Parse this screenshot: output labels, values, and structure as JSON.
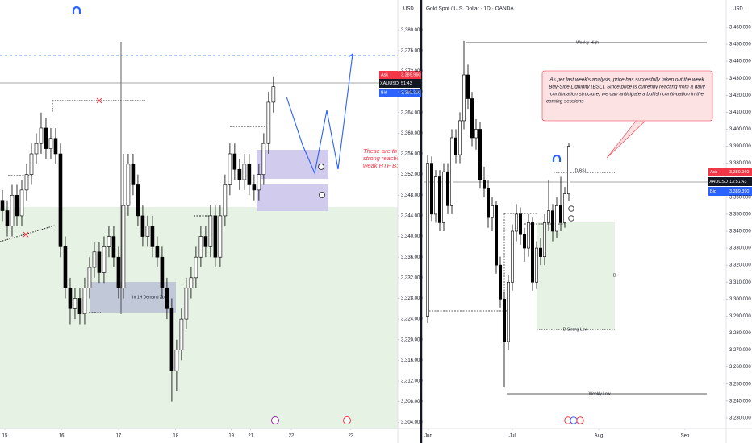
{
  "chart_data": [
    {
      "type": "candlestick",
      "unit": "USD",
      "up_color": "#ffffff",
      "down_color": "#000000",
      "edge_color": "#000000",
      "candles": [
        {
          "o": 3347,
          "h": 3349,
          "l": 3343,
          "c": 3345
        },
        {
          "o": 3345,
          "h": 3347,
          "l": 3340,
          "c": 3342
        },
        {
          "o": 3342,
          "h": 3350,
          "l": 3340,
          "c": 3348
        },
        {
          "o": 3348,
          "h": 3350,
          "l": 3342,
          "c": 3344
        },
        {
          "o": 3344,
          "h": 3351,
          "l": 3342,
          "c": 3349
        },
        {
          "o": 3349,
          "h": 3354,
          "l": 3347,
          "c": 3352
        },
        {
          "o": 3352,
          "h": 3358,
          "l": 3350,
          "c": 3356
        },
        {
          "o": 3356,
          "h": 3360,
          "l": 3354,
          "c": 3358
        },
        {
          "o": 3358,
          "h": 3364,
          "l": 3356,
          "c": 3361
        },
        {
          "o": 3361,
          "h": 3363,
          "l": 3355,
          "c": 3357
        },
        {
          "o": 3357,
          "h": 3361,
          "l": 3355,
          "c": 3359
        },
        {
          "o": 3359,
          "h": 3361,
          "l": 3354,
          "c": 3356
        },
        {
          "o": 3356,
          "h": 3358,
          "l": 3336,
          "c": 3338
        },
        {
          "o": 3338,
          "h": 3340,
          "l": 3328,
          "c": 3330
        },
        {
          "o": 3330,
          "h": 3332,
          "l": 3323,
          "c": 3326
        },
        {
          "o": 3326,
          "h": 3330,
          "l": 3324,
          "c": 3328
        },
        {
          "o": 3328,
          "h": 3330,
          "l": 3323,
          "c": 3325
        },
        {
          "o": 3325,
          "h": 3332,
          "l": 3323,
          "c": 3330
        },
        {
          "o": 3330,
          "h": 3336,
          "l": 3328,
          "c": 3334
        },
        {
          "o": 3334,
          "h": 3339,
          "l": 3332,
          "c": 3337
        },
        {
          "o": 3337,
          "h": 3339,
          "l": 3331,
          "c": 3333
        },
        {
          "o": 3333,
          "h": 3340,
          "l": 3331,
          "c": 3338
        },
        {
          "o": 3338,
          "h": 3342,
          "l": 3336,
          "c": 3340
        },
        {
          "o": 3340,
          "h": 3342,
          "l": 3334,
          "c": 3336
        },
        {
          "o": 3336,
          "h": 3338,
          "l": 3328,
          "c": 3330
        },
        {
          "o": 3330,
          "h": 3356,
          "l": 3328,
          "c": 3346
        },
        {
          "o": 3346,
          "h": 3356,
          "l": 3344,
          "c": 3354
        },
        {
          "o": 3354,
          "h": 3356,
          "l": 3348,
          "c": 3350
        },
        {
          "o": 3350,
          "h": 3352,
          "l": 3342,
          "c": 3344
        },
        {
          "o": 3344,
          "h": 3346,
          "l": 3338,
          "c": 3340
        },
        {
          "o": 3340,
          "h": 3344,
          "l": 3338,
          "c": 3342
        },
        {
          "o": 3342,
          "h": 3344,
          "l": 3336,
          "c": 3338
        },
        {
          "o": 3338,
          "h": 3340,
          "l": 3334,
          "c": 3336
        },
        {
          "o": 3336,
          "h": 3338,
          "l": 3328,
          "c": 3330
        },
        {
          "o": 3330,
          "h": 3332,
          "l": 3324,
          "c": 3326
        },
        {
          "o": 3326,
          "h": 3328,
          "l": 3308,
          "c": 3314
        },
        {
          "o": 3314,
          "h": 3320,
          "l": 3310,
          "c": 3318
        },
        {
          "o": 3318,
          "h": 3326,
          "l": 3316,
          "c": 3324
        },
        {
          "o": 3324,
          "h": 3332,
          "l": 3322,
          "c": 3330
        },
        {
          "o": 3330,
          "h": 3334,
          "l": 3328,
          "c": 3332
        },
        {
          "o": 3332,
          "h": 3338,
          "l": 3330,
          "c": 3336
        },
        {
          "o": 3336,
          "h": 3342,
          "l": 3334,
          "c": 3340
        },
        {
          "o": 3340,
          "h": 3342,
          "l": 3336,
          "c": 3338
        },
        {
          "o": 3338,
          "h": 3346,
          "l": 3336,
          "c": 3344
        },
        {
          "o": 3344,
          "h": 3346,
          "l": 3334,
          "c": 3336
        },
        {
          "o": 3336,
          "h": 3346,
          "l": 3334,
          "c": 3344
        },
        {
          "o": 3344,
          "h": 3352,
          "l": 3342,
          "c": 3350
        },
        {
          "o": 3350,
          "h": 3358,
          "l": 3348,
          "c": 3356
        },
        {
          "o": 3356,
          "h": 3358,
          "l": 3351,
          "c": 3353
        },
        {
          "o": 3353,
          "h": 3355,
          "l": 3349,
          "c": 3351
        },
        {
          "o": 3351,
          "h": 3356,
          "l": 3349,
          "c": 3354
        },
        {
          "o": 3354,
          "h": 3356,
          "l": 3348,
          "c": 3350
        },
        {
          "o": 3350,
          "h": 3352,
          "l": 3347,
          "c": 3349
        },
        {
          "o": 3349,
          "h": 3354,
          "l": 3347,
          "c": 3352
        },
        {
          "o": 3352,
          "h": 3360,
          "l": 3350,
          "c": 3358
        },
        {
          "o": 3358,
          "h": 3368,
          "l": 3356,
          "c": 3366
        },
        {
          "o": 3366,
          "h": 3371,
          "l": 3364,
          "c": 3369
        }
      ],
      "xlim": [
        -0.5,
        81.7
      ],
      "xticks": [
        {
          "value": 0.5,
          "label": "15"
        },
        {
          "value": 12.2,
          "label": "16"
        },
        {
          "value": 24,
          "label": "17"
        },
        {
          "value": 35.8,
          "label": "18"
        },
        {
          "value": 47.3,
          "label": "19"
        },
        {
          "value": 51.3,
          "label": "21"
        },
        {
          "value": 59.7,
          "label": "22"
        },
        {
          "value": 72,
          "label": "23"
        }
      ],
      "ylim": [
        3302.8,
        3385.8
      ],
      "yticks": [
        {
          "value": 3304,
          "label": "3,304.000"
        },
        {
          "value": 3308,
          "label": "3,308.000"
        },
        {
          "value": 3312,
          "label": "3,312.000"
        },
        {
          "value": 3316,
          "label": "3,316.000"
        },
        {
          "value": 3320,
          "label": "3,320.000"
        },
        {
          "value": 3324,
          "label": "3,324.000"
        },
        {
          "value": 3328,
          "label": "3,328.000"
        },
        {
          "value": 3332,
          "label": "3,332.000"
        },
        {
          "value": 3336,
          "label": "3,336.000"
        },
        {
          "value": 3340,
          "label": "3,340.000"
        },
        {
          "value": 3344,
          "label": "3,344.000"
        },
        {
          "value": 3348,
          "label": "3,348.000"
        },
        {
          "value": 3352,
          "label": "3,352.000"
        },
        {
          "value": 3356,
          "label": "3,356.000"
        },
        {
          "value": 3360,
          "label": "3,360.000"
        },
        {
          "value": 3364,
          "label": "3,364.000"
        },
        {
          "value": 3368,
          "label": "3,368.000"
        },
        {
          "value": 3372,
          "label": "3,372.000"
        },
        {
          "value": 3376,
          "label": "3,376.000"
        },
        {
          "value": 3380,
          "label": "3,380.000"
        }
      ],
      "price_tags": {
        "ask": {
          "name": "Ask",
          "value": 3389.96,
          "label": "3,389.960"
        },
        "symbol": {
          "name": "XAUUSD",
          "time": "51:43"
        },
        "bid": {
          "name": "Bid",
          "value": 3389.39,
          "label": "3,389.390"
        }
      },
      "annotations": {
        "note": [
          "These are the F",
          "strong reaction",
          "weak HTF BSL."
        ],
        "zone": "thr 1H Demand Zone"
      }
    },
    {
      "type": "candlestick",
      "title": "Gold Spot / U.S. Dollar · 1D · OANDA",
      "unit": "USD",
      "up_color": "#ffffff",
      "down_color": "#000000",
      "edge_color": "#000000",
      "candles": [
        {
          "o": 3290,
          "h": 3385,
          "l": 3286,
          "c": 3380
        },
        {
          "o": 3380,
          "h": 3384,
          "l": 3346,
          "c": 3350
        },
        {
          "o": 3350,
          "h": 3376,
          "l": 3345,
          "c": 3372
        },
        {
          "o": 3372,
          "h": 3376,
          "l": 3340,
          "c": 3345
        },
        {
          "o": 3345,
          "h": 3380,
          "l": 3340,
          "c": 3375
        },
        {
          "o": 3375,
          "h": 3380,
          "l": 3350,
          "c": 3355
        },
        {
          "o": 3355,
          "h": 3400,
          "l": 3350,
          "c": 3395
        },
        {
          "o": 3395,
          "h": 3400,
          "l": 3380,
          "c": 3385
        },
        {
          "o": 3385,
          "h": 3410,
          "l": 3380,
          "c": 3405
        },
        {
          "o": 3405,
          "h": 3452,
          "l": 3400,
          "c": 3432
        },
        {
          "o": 3432,
          "h": 3438,
          "l": 3412,
          "c": 3418
        },
        {
          "o": 3418,
          "h": 3422,
          "l": 3390,
          "c": 3395
        },
        {
          "o": 3395,
          "h": 3406,
          "l": 3388,
          "c": 3400
        },
        {
          "o": 3400,
          "h": 3404,
          "l": 3365,
          "c": 3370
        },
        {
          "o": 3370,
          "h": 3378,
          "l": 3360,
          "c": 3365
        },
        {
          "o": 3365,
          "h": 3370,
          "l": 3342,
          "c": 3348
        },
        {
          "o": 3348,
          "h": 3360,
          "l": 3340,
          "c": 3355
        },
        {
          "o": 3355,
          "h": 3358,
          "l": 3315,
          "c": 3320
        },
        {
          "o": 3320,
          "h": 3325,
          "l": 3295,
          "c": 3300
        },
        {
          "o": 3300,
          "h": 3304,
          "l": 3248,
          "c": 3275
        },
        {
          "o": 3275,
          "h": 3314,
          "l": 3270,
          "c": 3310
        },
        {
          "o": 3310,
          "h": 3344,
          "l": 3305,
          "c": 3340
        },
        {
          "o": 3340,
          "h": 3356,
          "l": 3334,
          "c": 3350
        },
        {
          "o": 3350,
          "h": 3354,
          "l": 3332,
          "c": 3338
        },
        {
          "o": 3338,
          "h": 3342,
          "l": 3322,
          "c": 3330
        },
        {
          "o": 3330,
          "h": 3350,
          "l": 3325,
          "c": 3345
        },
        {
          "o": 3345,
          "h": 3348,
          "l": 3305,
          "c": 3310
        },
        {
          "o": 3310,
          "h": 3334,
          "l": 3306,
          "c": 3330
        },
        {
          "o": 3330,
          "h": 3336,
          "l": 3320,
          "c": 3325
        },
        {
          "o": 3325,
          "h": 3350,
          "l": 3320,
          "c": 3345
        },
        {
          "o": 3345,
          "h": 3370,
          "l": 3340,
          "c": 3352
        },
        {
          "o": 3352,
          "h": 3356,
          "l": 3334,
          "c": 3340
        },
        {
          "o": 3340,
          "h": 3360,
          "l": 3336,
          "c": 3355
        },
        {
          "o": 3355,
          "h": 3372,
          "l": 3340,
          "c": 3345
        },
        {
          "o": 3345,
          "h": 3366,
          "l": 3342,
          "c": 3362
        },
        {
          "o": 3362,
          "h": 3392,
          "l": 3358,
          "c": 3390
        }
      ],
      "xlim": [
        -1,
        74
      ],
      "xticks": [
        {
          "value": 0.2,
          "label": "Jun"
        },
        {
          "value": 21,
          "label": "Jul"
        },
        {
          "value": 42.4,
          "label": "Aug"
        },
        {
          "value": 63.8,
          "label": "Sep"
        }
      ],
      "ylim": [
        3223.8,
        3476.1
      ],
      "yticks": [
        {
          "value": 3230,
          "label": "3,230.000"
        },
        {
          "value": 3240,
          "label": "3,240.000"
        },
        {
          "value": 3250,
          "label": "3,250.000"
        },
        {
          "value": 3260,
          "label": "3,260.000"
        },
        {
          "value": 3270,
          "label": "3,270.000"
        },
        {
          "value": 3280,
          "label": "3,280.000"
        },
        {
          "value": 3290,
          "label": "3,290.000"
        },
        {
          "value": 3300,
          "label": "3,300.000"
        },
        {
          "value": 3310,
          "label": "3,310.000"
        },
        {
          "value": 3320,
          "label": "3,320.000"
        },
        {
          "value": 3330,
          "label": "3,330.000"
        },
        {
          "value": 3340,
          "label": "3,340.000"
        },
        {
          "value": 3350,
          "label": "3,350.000"
        },
        {
          "value": 3360,
          "label": "3,360.000"
        },
        {
          "value": 3370,
          "label": "3,370.000"
        },
        {
          "value": 3380,
          "label": "3,380.000"
        },
        {
          "value": 3390,
          "label": "3,390.000"
        },
        {
          "value": 3400,
          "label": "3,400.000"
        },
        {
          "value": 3410,
          "label": "3,410.000"
        },
        {
          "value": 3420,
          "label": "3,420.000"
        },
        {
          "value": 3430,
          "label": "3,430.000"
        },
        {
          "value": 3440,
          "label": "3,440.000"
        },
        {
          "value": 3450,
          "label": "3,450.000"
        },
        {
          "value": 3460,
          "label": "3,460.000"
        }
      ],
      "price_tags": {
        "ask": {
          "name": "Ask",
          "value": 3389.96,
          "label": "3,389.960"
        },
        "symbol": {
          "name": "XAUUSD",
          "time": "13:51:43"
        },
        "bid": {
          "name": "Bid",
          "value": 3389.39,
          "label": "3,389.390"
        }
      },
      "annotations": {
        "weekly_high": "Weekly High",
        "bsl": "D-BSL",
        "strong_low": "D Strong Low",
        "weekly_low": "Weekly Low",
        "zone": "D",
        "note": [
          "As per last week's analysis, price has succesfully taken out the week",
          "Buy-Side Liquidity (BSL). Since price is currently reacting from a daily",
          "continuation structure, we can anticipate a bullish continuation in the",
          "coming sessions"
        ]
      }
    }
  ]
}
